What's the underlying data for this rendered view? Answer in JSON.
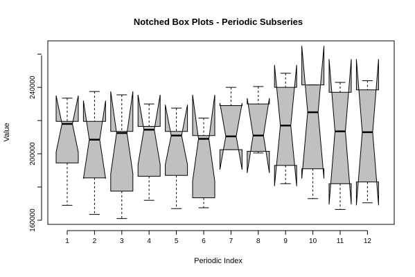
{
  "chart_data": {
    "type": "boxplot",
    "notched": true,
    "title": "Notched Box Plots - Periodic Subseries",
    "xlabel": "Periodic Index",
    "ylabel": "Value",
    "categories": [
      "1",
      "2",
      "3",
      "4",
      "5",
      "6",
      "7",
      "8",
      "9",
      "10",
      "11",
      "12"
    ],
    "y_ticks": [
      160000,
      200000,
      240000
    ],
    "y_tick_labels": [
      "160000",
      "200000",
      "240000"
    ],
    "ylim": [
      157500,
      268000
    ],
    "box_fill": "#c0c0c0",
    "boxes": [
      {
        "min": 169000,
        "q1": 194500,
        "median": 218000,
        "q3": 219500,
        "max": 233500,
        "notch_low": 201000,
        "notch_high": 235000
      },
      {
        "min": 163500,
        "q1": 185500,
        "median": 208500,
        "q3": 219500,
        "max": 237500,
        "notch_low": 185000,
        "notch_high": 232000
      },
      {
        "min": 161000,
        "q1": 177500,
        "median": 212500,
        "q3": 213500,
        "max": 235500,
        "notch_low": 188000,
        "notch_high": 237500
      },
      {
        "min": 172000,
        "q1": 186500,
        "median": 214500,
        "q3": 216500,
        "max": 230000,
        "notch_low": 193500,
        "notch_high": 235500
      },
      {
        "min": 167000,
        "q1": 187000,
        "median": 211000,
        "q3": 213500,
        "max": 227500,
        "notch_low": 193500,
        "notch_high": 229500
      },
      {
        "min": 167500,
        "q1": 173500,
        "median": 209000,
        "q3": 211000,
        "max": 221500,
        "notch_low": 183500,
        "notch_high": 235500
      },
      {
        "min": 202500,
        "q1": 202500,
        "median": 210500,
        "q3": 229000,
        "max": 240000,
        "notch_low": 190500,
        "notch_high": 230500
      },
      {
        "min": 200500,
        "q1": 201500,
        "median": 211000,
        "q3": 230000,
        "max": 240500,
        "notch_low": 188500,
        "notch_high": 233500
      },
      {
        "min": 182000,
        "q1": 193000,
        "median": 217000,
        "q3": 240000,
        "max": 248500,
        "notch_low": 180500,
        "notch_high": 253500
      },
      {
        "min": 173000,
        "q1": 191000,
        "median": 225000,
        "q3": 241500,
        "max": 241500,
        "notch_low": 185000,
        "notch_high": 265000
      },
      {
        "min": 166500,
        "q1": 182000,
        "median": 213500,
        "q3": 237000,
        "max": 243000,
        "notch_low": 169500,
        "notch_high": 257000
      },
      {
        "min": 170500,
        "q1": 183000,
        "median": 213000,
        "q3": 238500,
        "max": 244000,
        "notch_low": 169000,
        "notch_high": 257000
      }
    ]
  }
}
